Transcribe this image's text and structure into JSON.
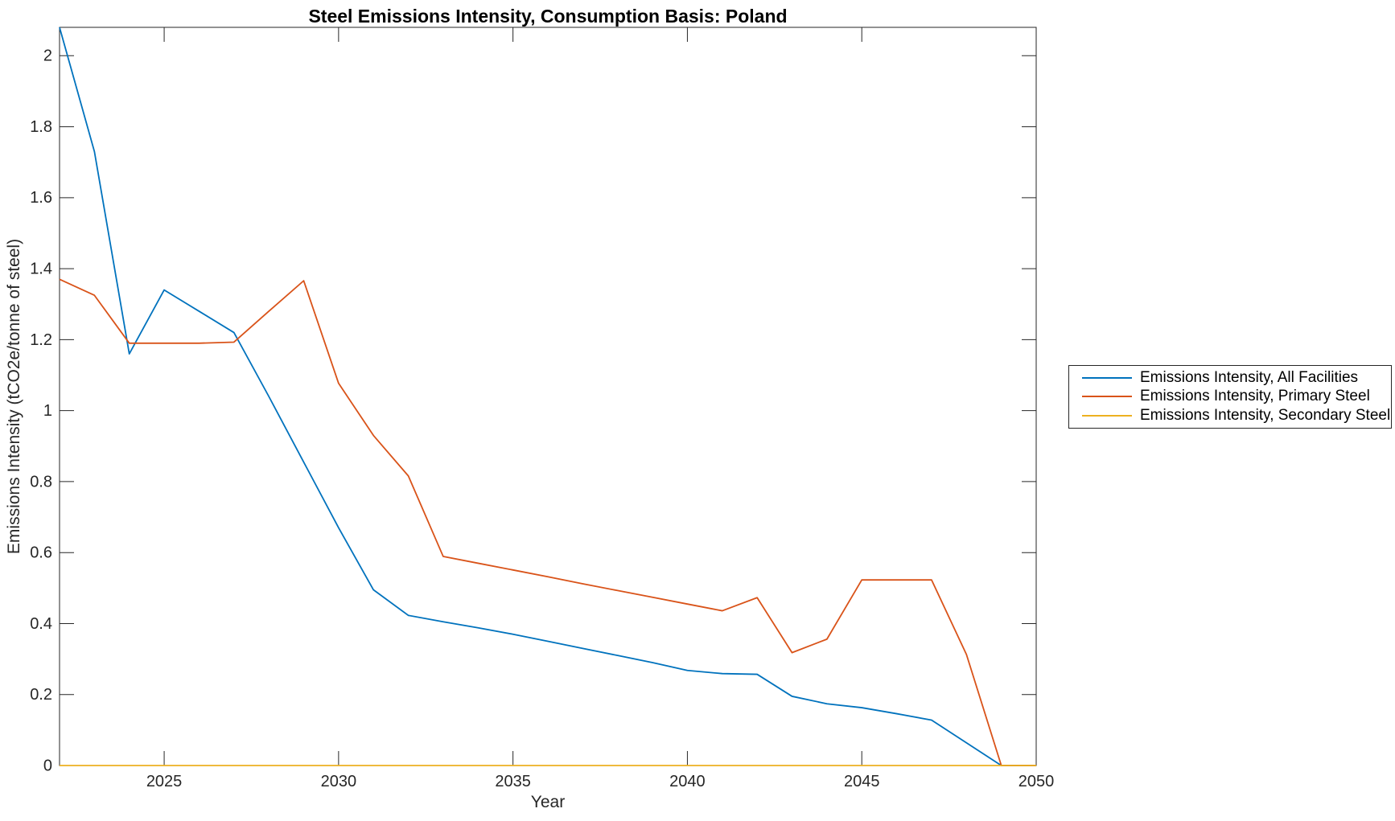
{
  "figure": {
    "background": "#ffffff"
  },
  "chart_data": {
    "type": "line",
    "title": "Steel Emissions Intensity, Consumption Basis: Poland",
    "xlabel": "Year",
    "ylabel": "Emissions Intensity (tCO2e/tonne of steel)",
    "xlim": [
      2022,
      2050
    ],
    "ylim": [
      0,
      2.08
    ],
    "xticks": [
      2025,
      2030,
      2035,
      2040,
      2045,
      2050
    ],
    "xtick_labels": [
      "2025",
      "2030",
      "2035",
      "2040",
      "2045",
      "2050"
    ],
    "yticks": [
      0,
      0.2,
      0.4,
      0.6,
      0.8,
      1,
      1.2,
      1.4,
      1.6,
      1.8,
      2
    ],
    "ytick_labels": [
      "0",
      "0.2",
      "0.4",
      "0.6",
      "0.8",
      "1",
      "1.2",
      "1.4",
      "1.6",
      "1.8",
      "2"
    ],
    "grid": false,
    "legend_position": "right-outside",
    "axis_color": "#262626",
    "x": [
      2022,
      2023,
      2024,
      2025,
      2026,
      2027,
      2028,
      2029,
      2030,
      2031,
      2032,
      2033,
      2034,
      2035,
      2036,
      2037,
      2038,
      2039,
      2040,
      2041,
      2042,
      2043,
      2044,
      2045,
      2046,
      2047,
      2048,
      2049,
      2050
    ],
    "series": [
      {
        "name": "Emissions Intensity, All Facilities",
        "color": "#0072BD",
        "values": [
          2.08,
          1.73,
          1.16,
          1.34,
          1.28,
          1.22,
          1.04,
          0.855,
          0.67,
          0.495,
          0.423,
          0.405,
          0.388,
          0.37,
          0.35,
          0.33,
          0.31,
          0.29,
          0.268,
          0.259,
          0.257,
          0.195,
          0.174,
          0.163,
          0.146,
          0.128,
          0.064,
          0,
          0
        ]
      },
      {
        "name": "Emissions Intensity, Primary Steel",
        "color": "#D95319",
        "values": [
          1.37,
          1.325,
          1.19,
          1.19,
          1.19,
          1.193,
          1.28,
          1.366,
          1.077,
          0.93,
          0.816,
          0.589,
          0.57,
          0.551,
          0.532,
          0.512,
          0.493,
          0.474,
          0.455,
          0.436,
          0.473,
          0.318,
          0.356,
          0.523,
          0.523,
          0.523,
          0.313,
          0,
          0
        ]
      },
      {
        "name": "Emissions Intensity, Secondary Steel",
        "color": "#EDB120",
        "values": [
          0,
          0,
          0,
          0,
          0,
          0,
          0,
          0,
          0,
          0,
          0,
          0,
          0,
          0,
          0,
          0,
          0,
          0,
          0,
          0,
          0,
          0,
          0,
          0,
          0,
          0,
          0,
          0,
          0
        ]
      }
    ]
  },
  "legend": {
    "items": [
      {
        "label": "Emissions Intensity, All Facilities",
        "color": "#0072BD"
      },
      {
        "label": "Emissions Intensity, Primary Steel",
        "color": "#D95319"
      },
      {
        "label": "Emissions Intensity, Secondary Steel",
        "color": "#EDB120"
      }
    ]
  }
}
